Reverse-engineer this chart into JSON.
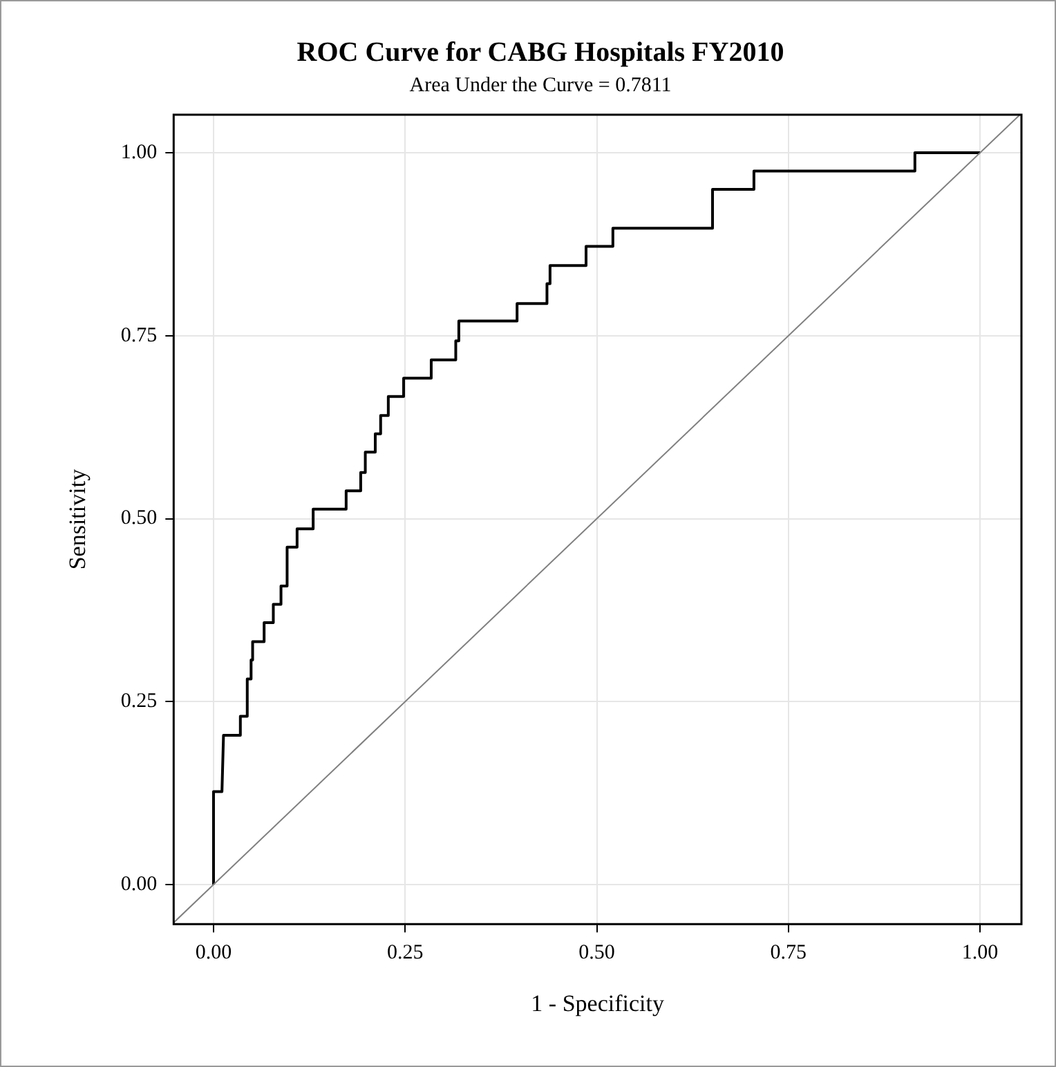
{
  "chart_data": {
    "type": "line",
    "title": "ROC Curve for CABG Hospitals FY2010",
    "subtitle": "Area Under the Curve = 0.7811",
    "xlabel": "1 - Specificity",
    "ylabel": "Sensitivity",
    "xlim": [
      -0.052,
      1.054
    ],
    "ylim": [
      -0.054,
      1.052
    ],
    "xticks": [
      {
        "value": 0,
        "label": "0.00"
      },
      {
        "value": 0.25,
        "label": "0.25"
      },
      {
        "value": 0.5,
        "label": "0.50"
      },
      {
        "value": 0.75,
        "label": "0.75"
      },
      {
        "value": 1,
        "label": "1.00"
      }
    ],
    "yticks": [
      {
        "value": 0,
        "label": "0.00"
      },
      {
        "value": 0.25,
        "label": "0.25"
      },
      {
        "value": 0.5,
        "label": "0.50"
      },
      {
        "value": 0.75,
        "label": "0.75"
      },
      {
        "value": 1,
        "label": "1.00"
      }
    ],
    "grid": true,
    "legend": false,
    "marker": "none",
    "line_style": "solid",
    "series": [
      {
        "color": "#000000",
        "x": [
          0,
          0,
          0.011,
          0.013,
          0.035,
          0.035,
          0.044,
          0.044,
          0.049,
          0.049,
          0.051,
          0.051,
          0.066,
          0.066,
          0.078,
          0.078,
          0.088,
          0.088,
          0.096,
          0.096,
          0.109,
          0.109,
          0.13,
          0.13,
          0.173,
          0.173,
          0.192,
          0.192,
          0.198,
          0.198,
          0.211,
          0.211,
          0.218,
          0.218,
          0.228,
          0.228,
          0.248,
          0.248,
          0.284,
          0.284,
          0.316,
          0.316,
          0.32,
          0.32,
          0.396,
          0.396,
          0.435,
          0.435,
          0.439,
          0.439,
          0.486,
          0.486,
          0.521,
          0.521,
          0.651,
          0.651,
          0.705,
          0.705,
          0.915,
          0.915,
          1.0
        ],
        "values": [
          0,
          0.127,
          0.127,
          0.204,
          0.204,
          0.23,
          0.23,
          0.281,
          0.281,
          0.307,
          0.307,
          0.332,
          0.332,
          0.358,
          0.358,
          0.383,
          0.383,
          0.408,
          0.408,
          0.461,
          0.461,
          0.486,
          0.486,
          0.513,
          0.513,
          0.538,
          0.538,
          0.563,
          0.563,
          0.591,
          0.591,
          0.616,
          0.616,
          0.641,
          0.641,
          0.667,
          0.667,
          0.692,
          0.692,
          0.717,
          0.717,
          0.743,
          0.743,
          0.77,
          0.77,
          0.794,
          0.794,
          0.821,
          0.821,
          0.846,
          0.846,
          0.872,
          0.872,
          0.897,
          0.897,
          0.95,
          0.95,
          0.975,
          0.975,
          1.0,
          1.0
        ]
      },
      {
        "color": "#808080",
        "x": [
          -0.052,
          1.052
        ],
        "values": [
          -0.052,
          1.052
        ]
      }
    ]
  }
}
